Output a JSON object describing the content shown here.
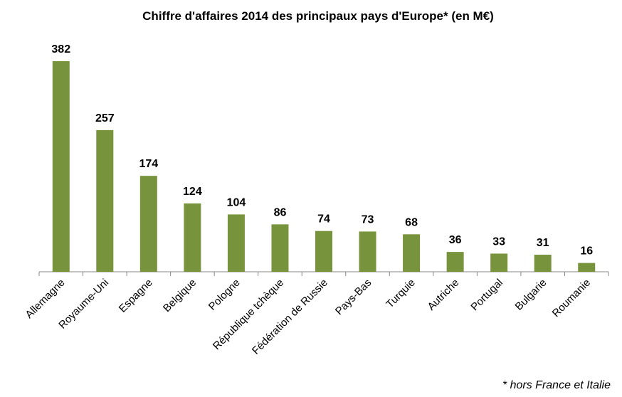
{
  "chart_data": {
    "type": "bar",
    "title": "Chiffre d'affaires 2014 des principaux pays d'Europe* (en M€)",
    "categories": [
      "Allemagne",
      "Royaume-Uni",
      "Espagne",
      "Belgique",
      "Pologne",
      "République tchèque",
      "Fédération de Russie",
      "Pays-Bas",
      "Turquie",
      "Autriche",
      "Portugal",
      "Bulgarie",
      "Roumanie"
    ],
    "values": [
      382,
      257,
      174,
      124,
      104,
      86,
      74,
      73,
      68,
      36,
      33,
      31,
      16
    ],
    "color": "#77933c",
    "footnote": "* hors France et Italie"
  }
}
